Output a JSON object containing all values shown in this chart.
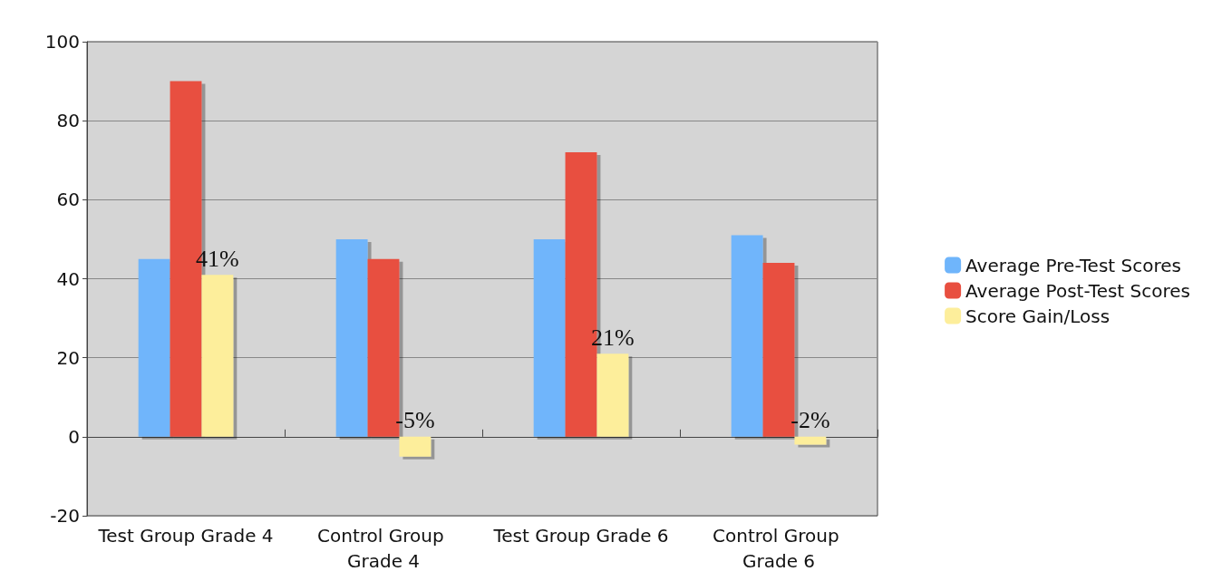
{
  "chart_data": {
    "type": "bar",
    "categories": [
      "Test Group Grade 4",
      "Control Group Grade 4",
      "Test Group Grade 6",
      "Control Group Grade 6"
    ],
    "series": [
      {
        "name": "Average Pre-Test Scores",
        "color": "#6fb5fb",
        "values": [
          45,
          50,
          50,
          51
        ]
      },
      {
        "name": "Average Post-Test Scores",
        "color": "#e84f40",
        "values": [
          90,
          45,
          72,
          44
        ]
      },
      {
        "name": "Score Gain/Loss",
        "color": "#fdee9b",
        "values": [
          41,
          -5,
          21,
          -2
        ],
        "value_labels": [
          "41%",
          "-5%",
          "21%",
          "-2%"
        ]
      }
    ],
    "ylim": [
      -20,
      100
    ],
    "yticks": [
      -20,
      0,
      20,
      40,
      60,
      80,
      100
    ],
    "grid": "y",
    "legend": "right"
  }
}
